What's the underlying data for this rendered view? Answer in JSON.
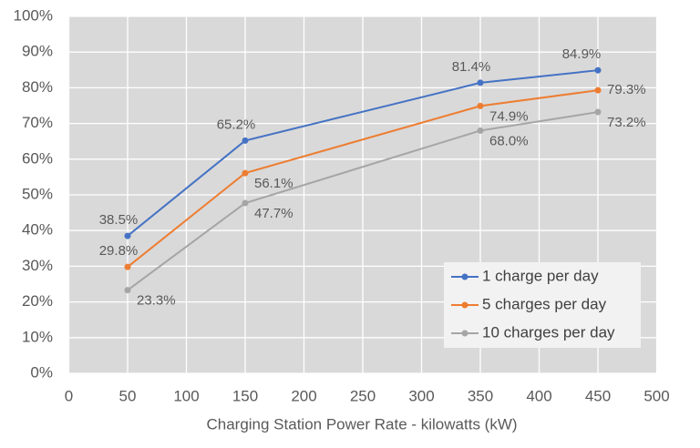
{
  "chart_data": {
    "type": "line",
    "x_label": "Charging Station Power Rate - kilowatts (kW)",
    "x": [
      50,
      150,
      350,
      450
    ],
    "series": [
      {
        "name": "1 charge per day",
        "color": "#4472c4",
        "values": [
          38.5,
          65.2,
          81.4,
          84.9
        ],
        "value_labels": [
          "38.5%",
          "65.2%",
          "81.4%",
          "84.9%"
        ]
      },
      {
        "name": "5 charges per day",
        "color": "#ed7d31",
        "values": [
          29.8,
          56.1,
          74.9,
          79.3
        ],
        "value_labels": [
          "29.8%",
          "56.1%",
          "74.9%",
          "79.3%"
        ]
      },
      {
        "name": "10 charges per day",
        "color": "#a5a5a5",
        "values": [
          23.3,
          47.7,
          68.0,
          73.2
        ],
        "value_labels": [
          "23.3%",
          "47.7%",
          "68.0%",
          "73.2%"
        ]
      }
    ],
    "xlim": [
      0,
      500
    ],
    "xticks": [
      0,
      50,
      100,
      150,
      200,
      250,
      300,
      350,
      400,
      450,
      500
    ],
    "ylim": [
      0,
      100
    ],
    "yticks": [
      {
        "value": 0,
        "label": "0%"
      },
      {
        "value": 10,
        "label": "10%"
      },
      {
        "value": 20,
        "label": "20%"
      },
      {
        "value": 30,
        "label": "30%"
      },
      {
        "value": 40,
        "label": "40%"
      },
      {
        "value": 50,
        "label": "50%"
      },
      {
        "value": 60,
        "label": "60%"
      },
      {
        "value": 70,
        "label": "70%"
      },
      {
        "value": 80,
        "label": "80%"
      },
      {
        "value": 90,
        "label": "90%"
      },
      {
        "value": 100,
        "label": "100%"
      }
    ],
    "grid": true,
    "legend": "lower right"
  }
}
